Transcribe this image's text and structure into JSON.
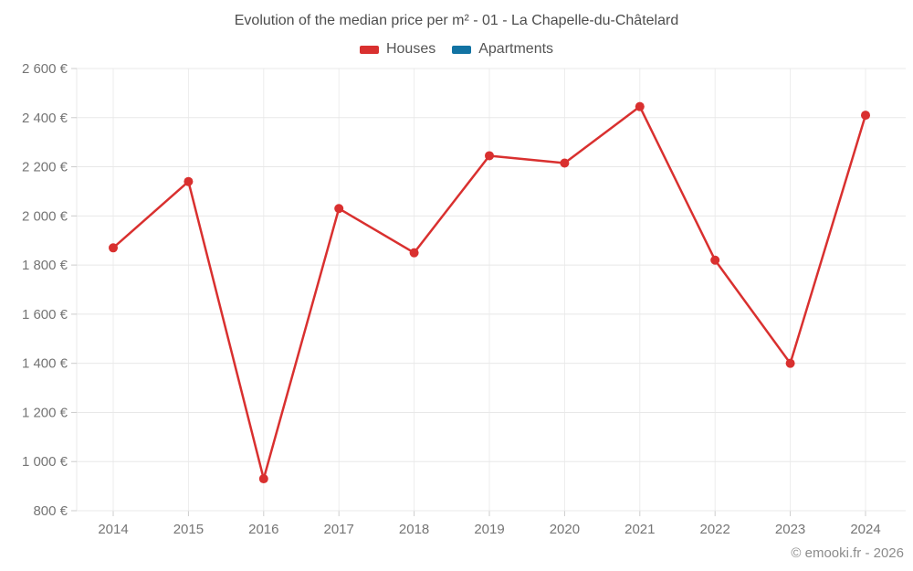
{
  "header": {
    "title": "Evolution of the median price per m² - 01 - La Chapelle-du-Châtelard"
  },
  "legend": {
    "items": [
      {
        "label": "Houses",
        "color": "#d9302f"
      },
      {
        "label": "Apartments",
        "color": "#1273a3"
      }
    ]
  },
  "footer": {
    "credit": "© emooki.fr - 2026"
  },
  "colors": {
    "houses_series": "#d9302f",
    "apartments_series": "#1273a3",
    "gridline": "#e8e8e8",
    "vertical_gridline": "#ededed",
    "tick": "#cccccc",
    "axis_label": "#757575",
    "title_text": "#4d4d4d",
    "footer_text": "#8c8c8c"
  },
  "chart_data": {
    "type": "line",
    "title": "Evolution of the median price per m² - 01 - La Chapelle-du-Châtelard",
    "categories": [
      "2014",
      "2015",
      "2016",
      "2017",
      "2018",
      "2019",
      "2020",
      "2021",
      "2022",
      "2023",
      "2024"
    ],
    "series": [
      {
        "name": "Houses",
        "color": "#d9302f",
        "values": [
          1870,
          2140,
          930,
          2030,
          1850,
          2245,
          2215,
          2445,
          1820,
          1400,
          2410
        ]
      },
      {
        "name": "Apartments",
        "color": "#1273a3",
        "values": []
      }
    ],
    "xlabel": "",
    "ylabel": "",
    "ylim": [
      800,
      2600
    ],
    "ytick_step": 200,
    "ytick_suffix": " €",
    "grid": true,
    "legend_position": "top",
    "marker": "circle"
  }
}
